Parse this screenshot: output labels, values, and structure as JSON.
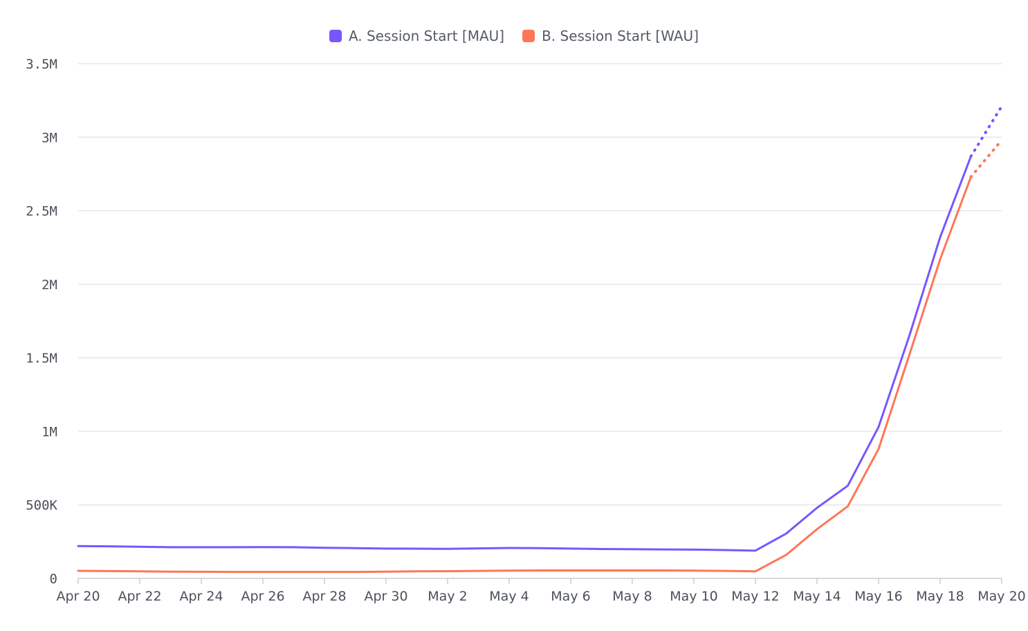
{
  "chart_data": {
    "type": "line",
    "x": [
      "Apr 20",
      "Apr 21",
      "Apr 22",
      "Apr 23",
      "Apr 24",
      "Apr 25",
      "Apr 26",
      "Apr 27",
      "Apr 28",
      "Apr 29",
      "Apr 30",
      "May 1",
      "May 2",
      "May 3",
      "May 4",
      "May 5",
      "May 6",
      "May 7",
      "May 8",
      "May 9",
      "May 10",
      "May 11",
      "May 12",
      "May 13",
      "May 14",
      "May 15",
      "May 16",
      "May 17",
      "May 18",
      "May 19",
      "May 20"
    ],
    "x_tick_labels": [
      "Apr 20",
      "Apr 22",
      "Apr 24",
      "Apr 26",
      "Apr 28",
      "Apr 30",
      "May 2",
      "May 4",
      "May 6",
      "May 8",
      "May 10",
      "May 12",
      "May 14",
      "May 16",
      "May 18",
      "May 20"
    ],
    "series": [
      {
        "name": "A. Session Start [MAU]",
        "color": "#7856ff",
        "values": [
          220000,
          218000,
          215000,
          212000,
          212000,
          212000,
          213000,
          212000,
          208000,
          206000,
          203000,
          202000,
          201000,
          204000,
          207000,
          206000,
          203000,
          200000,
          199000,
          197000,
          196000,
          193000,
          189000,
          305000,
          480000,
          630000,
          1030000,
          1650000,
          2320000,
          2870000,
          3210000
        ],
        "projected_from_index": 29
      },
      {
        "name": "B. Session Start [WAU]",
        "color": "#ff7557",
        "values": [
          52000,
          50000,
          48000,
          46000,
          45000,
          44000,
          44000,
          44000,
          44000,
          44000,
          46000,
          48000,
          49000,
          51000,
          53000,
          54000,
          54000,
          54000,
          54000,
          54000,
          53000,
          51000,
          48000,
          160000,
          335000,
          490000,
          880000,
          1520000,
          2170000,
          2730000,
          2980000
        ],
        "projected_from_index": 29
      }
    ],
    "y_tick_values": [
      0,
      500000,
      1000000,
      1500000,
      2000000,
      2500000,
      3000000,
      3500000
    ],
    "y_tick_labels": [
      "0",
      "500K",
      "1M",
      "1.5M",
      "2M",
      "2.5M",
      "3M",
      "3.5M"
    ],
    "ylim": [
      0,
      3500000
    ],
    "grid": true,
    "legend_position": "top-center"
  }
}
